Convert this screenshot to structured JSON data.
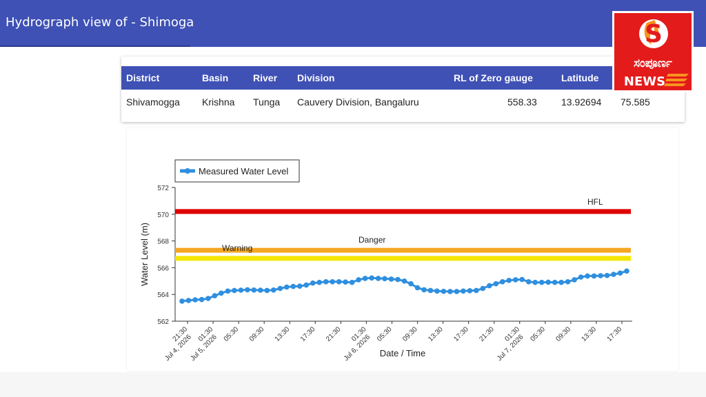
{
  "appbar": {
    "title": "Hydrograph view of - Shimoga"
  },
  "station_table": {
    "headers": {
      "district": "District",
      "basin": "Basin",
      "river": "River",
      "division": "Division",
      "rl_zero": "RL of Zero gauge",
      "latitude": "Latitude"
    },
    "row": {
      "district": "Shivamogga",
      "basin": "Krishna",
      "river": "Tunga",
      "division": "Cauvery Division, Bangaluru",
      "rl_zero": "558.33",
      "latitude": "13.92694",
      "longitude": "75.585"
    }
  },
  "logo": {
    "text_line1": "ಸಂಪೂರ್ಣ",
    "text_line2": "NEWS",
    "letter": "S"
  },
  "colors": {
    "appbar": "#3f51b5",
    "series": "#2f8fdf",
    "hfl": "#e00000",
    "danger": "#f5a623",
    "warning": "#f5e600"
  },
  "chart_data": {
    "type": "line",
    "xlabel": "Date / Time",
    "ylabel": "Water Level (m)",
    "ylim": [
      562,
      572
    ],
    "yticks": [
      562,
      564,
      566,
      568,
      570,
      572
    ],
    "grid": false,
    "legend": {
      "position": "top-left",
      "entries": [
        "Measured Water Level"
      ]
    },
    "x_tick_labels": [
      [
        "21:30",
        "Jul 4, 2026"
      ],
      [
        "01:30",
        "Jul 5, 2026"
      ],
      [
        "05:30"
      ],
      [
        "09:30"
      ],
      [
        "13:30"
      ],
      [
        "17:30"
      ],
      [
        "21:30"
      ],
      [
        "01:30",
        "Jul 6, 2026"
      ],
      [
        "05:30"
      ],
      [
        "09:30"
      ],
      [
        "13:30"
      ],
      [
        "17:30"
      ],
      [
        "21:30"
      ],
      [
        "01:30",
        "Jul 7, 2026"
      ],
      [
        "05:30"
      ],
      [
        "09:30"
      ],
      [
        "13:30"
      ],
      [
        "17:30"
      ]
    ],
    "reference_lines": [
      {
        "name": "HFL",
        "value": 570.2
      },
      {
        "name": "Danger",
        "value": 567.3
      },
      {
        "name": "Warning",
        "value": 566.7
      }
    ],
    "series": [
      {
        "name": "Measured Water Level",
        "values": [
          563.5,
          563.55,
          563.6,
          563.62,
          563.7,
          563.9,
          564.1,
          564.25,
          564.3,
          564.32,
          564.35,
          564.33,
          564.32,
          564.3,
          564.33,
          564.45,
          564.55,
          564.6,
          564.62,
          564.7,
          564.85,
          564.9,
          564.95,
          564.95,
          564.95,
          564.93,
          564.9,
          565.1,
          565.2,
          565.23,
          565.2,
          565.18,
          565.15,
          565.12,
          565.0,
          564.8,
          564.5,
          564.35,
          564.3,
          564.25,
          564.23,
          564.22,
          564.22,
          564.25,
          564.28,
          564.3,
          564.45,
          564.65,
          564.8,
          564.95,
          565.05,
          565.1,
          565.12,
          564.95,
          564.9,
          564.9,
          564.92,
          564.9,
          564.9,
          564.95,
          565.1,
          565.3,
          565.38,
          565.38,
          565.4,
          565.42,
          565.5,
          565.6,
          565.75
        ]
      }
    ]
  }
}
